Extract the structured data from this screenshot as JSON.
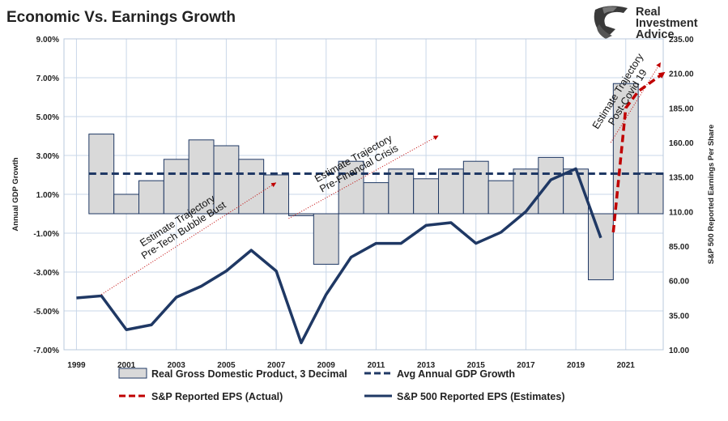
{
  "title": "Economic Vs. Earnings Growth",
  "brand": {
    "line1": "Real",
    "line2": "Investment",
    "line3": "Advice",
    "icon": "eagle-head-icon"
  },
  "colors": {
    "bar_fill": "#d9d9d9",
    "bar_stroke": "#1f3864",
    "avg_line": "#1f3864",
    "estimates_line": "#1f3864",
    "actual_line": "#c00000",
    "grid": "#c9d7e8",
    "trajectory": "#c00000"
  },
  "chart_data": {
    "type": "bar",
    "x_ticks": [
      "1999",
      "2001",
      "2003",
      "2005",
      "2007",
      "2009",
      "2011",
      "2013",
      "2015",
      "2017",
      "2019",
      "2021"
    ],
    "y_left": {
      "label": "Annual GDP Growth",
      "ticks": [
        "9.00%",
        "7.00%",
        "5.00%",
        "3.00%",
        "1.00%",
        "-1.00%",
        "-3.00%",
        "-5.00%",
        "-7.00%"
      ],
      "range": [
        -7,
        9
      ]
    },
    "y_right": {
      "label": "S&P 500 Reported Earnings Per Share",
      "ticks": [
        "235.00",
        "210.00",
        "185.00",
        "160.00",
        "135.00",
        "110.00",
        "85.00",
        "60.00",
        "35.00",
        "10.00"
      ],
      "range": [
        10,
        235
      ]
    },
    "series": [
      {
        "name": "Real Gross Domestic Product, 3 Decimal",
        "type": "bar",
        "axis": "left",
        "x": [
          2000,
          2001,
          2002,
          2003,
          2004,
          2005,
          2006,
          2007,
          2008,
          2009,
          2010,
          2011,
          2012,
          2013,
          2014,
          2015,
          2016,
          2017,
          2018,
          2019,
          2020,
          2021,
          2022
        ],
        "values": [
          4.1,
          1.0,
          1.7,
          2.8,
          3.8,
          3.5,
          2.8,
          2.0,
          -0.1,
          -2.6,
          2.7,
          1.6,
          2.3,
          1.8,
          2.3,
          2.7,
          1.7,
          2.3,
          2.9,
          2.3,
          -3.4,
          6.7,
          2.1
        ]
      },
      {
        "name": "Avg Annual GDP Growth",
        "type": "line",
        "axis": "left",
        "x": [
          2000,
          2022
        ],
        "values": [
          2.06,
          2.06
        ]
      },
      {
        "name": "S&P Reported EPS (Actual)",
        "type": "line",
        "axis": "right",
        "x": [
          2020.5,
          2021,
          2021.5,
          2022.5
        ],
        "values": [
          95,
          185,
          197,
          210
        ]
      },
      {
        "name": "S&P 500 Reported EPS (Estimates)",
        "type": "line",
        "axis": "right",
        "x": [
          1999,
          2000,
          2001,
          2002,
          2003,
          2004,
          2005,
          2006,
          2007,
          2008,
          2009,
          2010,
          2011,
          2012,
          2013,
          2014,
          2015,
          2016,
          2017,
          2018,
          2019,
          2020
        ],
        "values": [
          47.5,
          49,
          24.5,
          28,
          48,
          56,
          67,
          82,
          67,
          15,
          50,
          77,
          87,
          87,
          100,
          102,
          87,
          95,
          110,
          133,
          141,
          91
        ]
      }
    ],
    "annotations": [
      {
        "text1": "Estimate Trajectory",
        "text2": "Pre-Tech Bubble Bust",
        "x_from": 2000,
        "y_from": 50,
        "x_to": 2007,
        "y_to": 131
      },
      {
        "text1": "Estimate Trajectory",
        "text2": "Pre-Financial Crisis",
        "x_from": 2007.5,
        "y_from": 105,
        "x_to": 2013.5,
        "y_to": 165
      },
      {
        "text1": "Estimate Trajectory",
        "text2": "Post-Covid 19",
        "x_from": 2020.4,
        "y_from": 160,
        "x_to": 2022.4,
        "y_to": 218
      }
    ],
    "legend": [
      {
        "label": "Real Gross Domestic Product, 3 Decimal",
        "kind": "bar"
      },
      {
        "label": "Avg Annual GDP Growth",
        "kind": "dash-blue"
      },
      {
        "label": "S&P Reported EPS (Actual)",
        "kind": "dash-red"
      },
      {
        "label": "S&P 500 Reported EPS (Estimates)",
        "kind": "line-blue"
      }
    ],
    "legend_position": "bottom",
    "grid": true
  }
}
